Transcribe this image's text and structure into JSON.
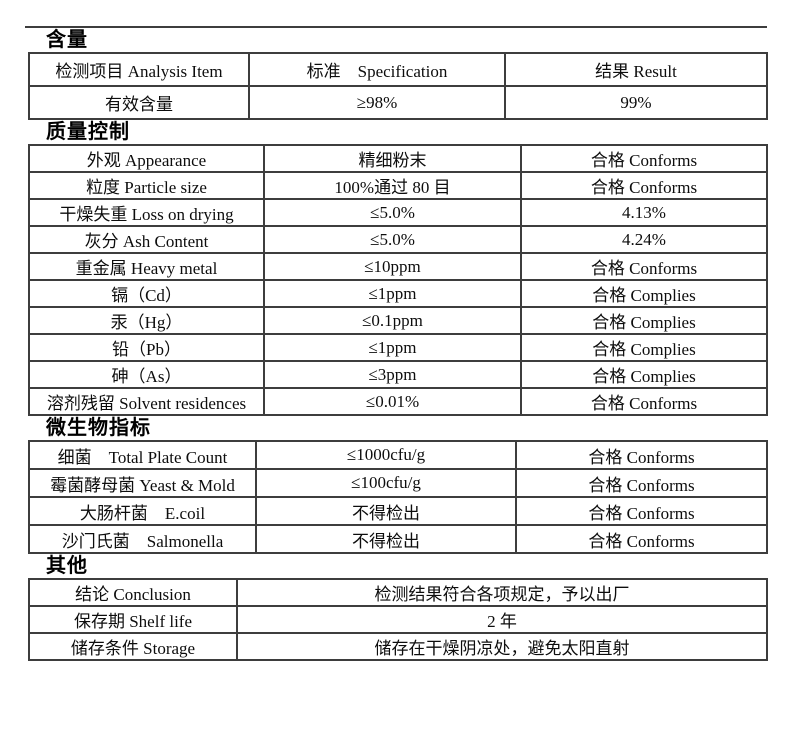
{
  "colors": {
    "border": "#3d3d3d",
    "text": "#0d0d0d",
    "background": "#ffffff"
  },
  "sections": [
    {
      "heading": "含量",
      "table": {
        "columns": [
          "检测项目 Analysis Item",
          "标准　Specification",
          "结果 Result"
        ],
        "rows": [
          [
            "有效含量",
            "≥98%",
            "99%"
          ]
        ]
      }
    },
    {
      "heading": "质量控制",
      "table": {
        "rows": [
          [
            "外观 Appearance",
            "精细粉末",
            "合格 Conforms"
          ],
          [
            "粒度 Particle size",
            "100%通过 80 目",
            "合格 Conforms"
          ],
          [
            "干燥失重 Loss on drying",
            "≤5.0%",
            "4.13%"
          ],
          [
            "灰分 Ash Content",
            "≤5.0%",
            "4.24%"
          ],
          [
            "重金属 Heavy metal",
            "≤10ppm",
            "合格 Conforms"
          ],
          [
            "镉（Cd）",
            "≤1ppm",
            "合格 Complies"
          ],
          [
            "汞（Hg）",
            "≤0.1ppm",
            "合格 Complies"
          ],
          [
            "铅（Pb）",
            "≤1ppm",
            "合格 Complies"
          ],
          [
            "砷（As）",
            "≤3ppm",
            "合格 Complies"
          ],
          [
            "溶剂残留 Solvent residences",
            "≤0.01%",
            "合格 Conforms"
          ]
        ]
      }
    },
    {
      "heading": "微生物指标",
      "table": {
        "rows": [
          [
            "细菌　Total Plate Count",
            "≤1000cfu/g",
            "合格 Conforms"
          ],
          [
            "霉菌酵母菌 Yeast & Mold",
            "≤100cfu/g",
            "合格 Conforms"
          ],
          [
            "大肠杆菌　E.coil",
            "不得检出",
            "合格 Conforms"
          ],
          [
            "沙门氏菌　Salmonella",
            "不得检出",
            "合格 Conforms"
          ]
        ]
      }
    },
    {
      "heading": "其他",
      "table": {
        "rows": [
          [
            "结论 Conclusion",
            "检测结果符合各项规定，予以出厂"
          ],
          [
            "保存期 Shelf life",
            "2 年"
          ],
          [
            "储存条件 Storage",
            "储存在干燥阴凉处，避免太阳直射"
          ]
        ]
      }
    }
  ]
}
